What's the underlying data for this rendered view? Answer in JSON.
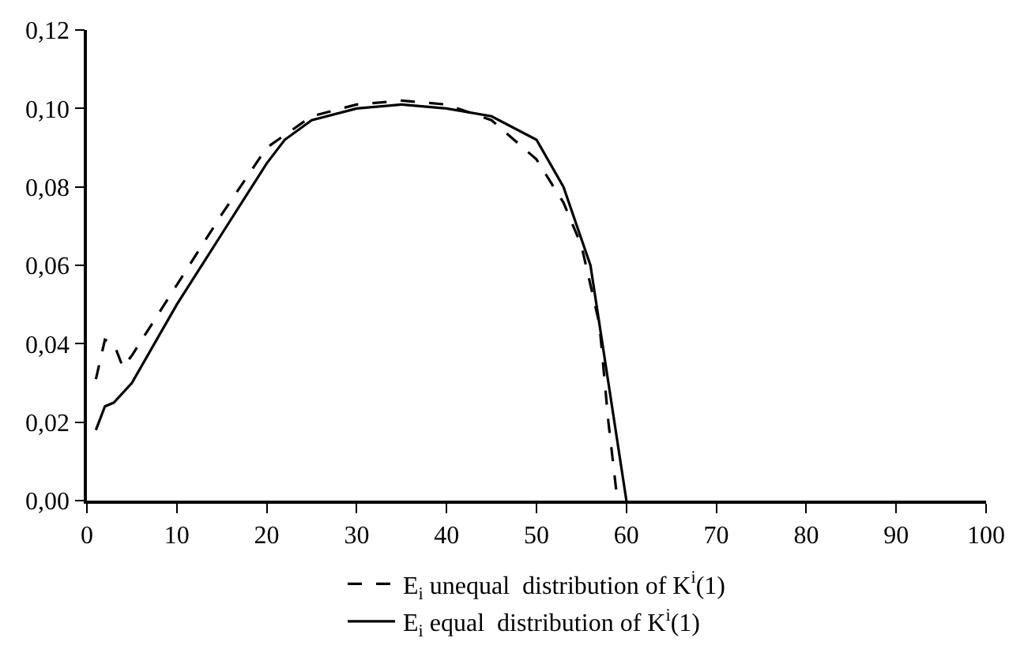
{
  "chart_data": {
    "type": "line",
    "xlim": [
      0,
      100
    ],
    "xticks": [
      0,
      10,
      20,
      30,
      40,
      50,
      60,
      70,
      80,
      90,
      100
    ],
    "ylim": [
      0,
      0.12
    ],
    "yticks": [
      {
        "value": 0,
        "label": "0,00"
      },
      {
        "value": 0.02,
        "label": "0,02"
      },
      {
        "value": 0.04,
        "label": "0,04"
      },
      {
        "value": 0.06,
        "label": "0,06"
      },
      {
        "value": 0.08,
        "label": "0,08"
      },
      {
        "value": 0.1,
        "label": "0,10"
      },
      {
        "value": 0.12,
        "label": "0,12"
      }
    ],
    "grid": false,
    "legend": "bottom",
    "series": [
      {
        "name": "E$_{i}$ unequal  distribution of K$^{i}$(1)",
        "color": "#000000",
        "line_style": "dashed",
        "x": [
          1,
          2,
          3,
          4,
          5,
          10,
          15,
          20,
          25,
          30,
          35,
          40,
          45,
          50,
          53,
          55,
          57,
          58,
          59
        ],
        "values": [
          0.031,
          0.041,
          0.04,
          0.034,
          0.037,
          0.055,
          0.073,
          0.09,
          0.098,
          0.101,
          0.102,
          0.101,
          0.097,
          0.087,
          0.076,
          0.065,
          0.045,
          0.02,
          0
        ]
      },
      {
        "name": "E$_{i}$ equal  distribution of K$^{i}$(1)",
        "color": "#000000",
        "line_style": "solid",
        "x": [
          1,
          2,
          3,
          5,
          10,
          15,
          20,
          22,
          25,
          30,
          35,
          40,
          45,
          50,
          53,
          56,
          58,
          60
        ],
        "values": [
          0.018,
          0.024,
          0.025,
          0.03,
          0.05,
          0.068,
          0.086,
          0.092,
          0.097,
          0.1,
          0.101,
          0.1,
          0.098,
          0.092,
          0.08,
          0.06,
          0.03,
          0
        ]
      }
    ]
  }
}
